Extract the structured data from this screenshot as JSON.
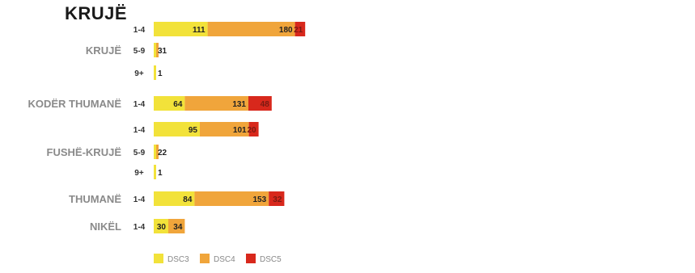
{
  "chart_data": {
    "type": "bar",
    "orientation": "horizontal",
    "stacked": true,
    "title": "KRUJË",
    "legend_position": "bottom-left",
    "grid": false,
    "series_names": [
      "DSC3",
      "DSC4",
      "DSC5"
    ],
    "colors": {
      "DSC3": "#f2e23a",
      "DSC4": "#f0a53b",
      "DSC5": "#d8281c"
    },
    "groups": [
      {
        "name": "KRUJË",
        "rows": [
          {
            "category": "1-4",
            "values": [
              111,
              180,
              21
            ]
          },
          {
            "category": "5-9",
            "values": [
              3,
              1,
              0
            ]
          },
          {
            "category": "9+",
            "values": [
              1,
              0,
              0
            ]
          }
        ]
      },
      {
        "name": "KODËR THUMANË",
        "rows": [
          {
            "category": "1-4",
            "values": [
              64,
              131,
              48
            ]
          }
        ]
      },
      {
        "name": "FUSHË-KRUJË",
        "rows": [
          {
            "category": "1-4",
            "values": [
              95,
              101,
              20
            ]
          },
          {
            "category": "5-9",
            "values": [
              2,
              2,
              0
            ]
          },
          {
            "category": "9+",
            "values": [
              1,
              0,
              0
            ]
          }
        ]
      },
      {
        "name": "THUMANË",
        "rows": [
          {
            "category": "1-4",
            "values": [
              84,
              153,
              32
            ]
          }
        ]
      },
      {
        "name": "NIKËL",
        "rows": [
          {
            "category": "1-4",
            "values": [
              30,
              34,
              0
            ]
          }
        ]
      }
    ]
  }
}
